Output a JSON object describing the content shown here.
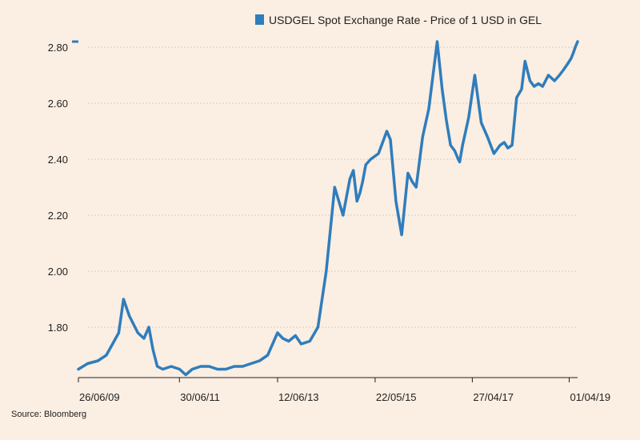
{
  "chart_data": {
    "type": "line",
    "title": "",
    "xlabel": "",
    "ylabel": "",
    "ylim": [
      1.62,
      2.82
    ],
    "yticks": [
      "2.80",
      "2.60",
      "2.40",
      "2.20",
      "2.00",
      "1.80"
    ],
    "ytick_values": [
      2.8,
      2.6,
      2.4,
      2.2,
      2.0,
      1.8
    ],
    "xticks": [
      "26/06/09",
      "30/06/11",
      "12/06/13",
      "22/05/15",
      "27/04/17",
      "01/04/19"
    ],
    "xtick_dates": [
      "2009-06-26",
      "2011-06-30",
      "2013-06-12",
      "2015-05-22",
      "2017-04-27",
      "2019-04-01"
    ],
    "xlim": [
      "2009-06-26",
      "2019-06-01"
    ],
    "grid": true,
    "legend_position": "top-center",
    "series": [
      {
        "name": "USDGEL Spot Exchange Rate - Price of 1 USD in GEL",
        "color": "#2f7dbd",
        "x": [
          "2009-06-26",
          "2009-09-01",
          "2009-11-15",
          "2010-01-15",
          "2010-03-01",
          "2010-04-15",
          "2010-05-20",
          "2010-07-01",
          "2010-09-01",
          "2010-10-15",
          "2010-11-20",
          "2010-12-20",
          "2011-01-20",
          "2011-03-01",
          "2011-05-01",
          "2011-07-01",
          "2011-08-15",
          "2011-10-01",
          "2011-12-01",
          "2012-02-01",
          "2012-04-01",
          "2012-06-01",
          "2012-08-01",
          "2012-10-01",
          "2012-12-01",
          "2013-02-01",
          "2013-04-01",
          "2013-06-12",
          "2013-07-20",
          "2013-09-01",
          "2013-10-20",
          "2013-12-01",
          "2014-02-01",
          "2014-04-01",
          "2014-06-01",
          "2014-08-01",
          "2014-10-01",
          "2014-11-20",
          "2014-12-15",
          "2015-01-10",
          "2015-02-01",
          "2015-02-20",
          "2015-03-15",
          "2015-04-20",
          "2015-06-15",
          "2015-08-15",
          "2015-09-10",
          "2015-10-20",
          "2015-12-01",
          "2016-01-15",
          "2016-02-15",
          "2016-03-15",
          "2016-05-01",
          "2016-06-15",
          "2016-08-15",
          "2016-09-20",
          "2016-10-20",
          "2016-11-20",
          "2016-12-20",
          "2017-01-15",
          "2017-01-25",
          "2017-02-15",
          "2017-03-10",
          "2017-04-01",
          "2017-05-15",
          "2017-07-01",
          "2017-08-15",
          "2017-10-01",
          "2017-11-15",
          "2017-12-15",
          "2018-01-10",
          "2018-02-10",
          "2018-03-15",
          "2018-04-20",
          "2018-05-15",
          "2018-06-20",
          "2018-07-20",
          "2018-08-20",
          "2018-09-20",
          "2018-11-01",
          "2018-12-15",
          "2019-01-20",
          "2019-02-20",
          "2019-03-20",
          "2019-04-15",
          "2019-05-01",
          "2019-05-15",
          "2019-06-01"
        ],
        "values": [
          1.65,
          1.67,
          1.68,
          1.7,
          1.74,
          1.78,
          1.9,
          1.84,
          1.78,
          1.76,
          1.8,
          1.72,
          1.66,
          1.65,
          1.66,
          1.65,
          1.63,
          1.65,
          1.66,
          1.66,
          1.65,
          1.65,
          1.66,
          1.66,
          1.67,
          1.68,
          1.7,
          1.78,
          1.76,
          1.75,
          1.77,
          1.74,
          1.75,
          1.8,
          2.0,
          2.3,
          2.2,
          2.33,
          2.36,
          2.25,
          2.28,
          2.32,
          2.38,
          2.4,
          2.42,
          2.5,
          2.47,
          2.25,
          2.13,
          2.35,
          2.32,
          2.3,
          2.48,
          2.58,
          2.82,
          2.65,
          2.54,
          2.45,
          2.43,
          2.4,
          2.39,
          2.45,
          2.5,
          2.55,
          2.7,
          2.53,
          2.48,
          2.42,
          2.45,
          2.46,
          2.44,
          2.45,
          2.62,
          2.65,
          2.75,
          2.68,
          2.66,
          2.67,
          2.66,
          2.7,
          2.68,
          2.7,
          2.72,
          2.74,
          2.76,
          2.78,
          2.8,
          2.82
        ]
      }
    ],
    "source": "Source: Bloomberg"
  }
}
